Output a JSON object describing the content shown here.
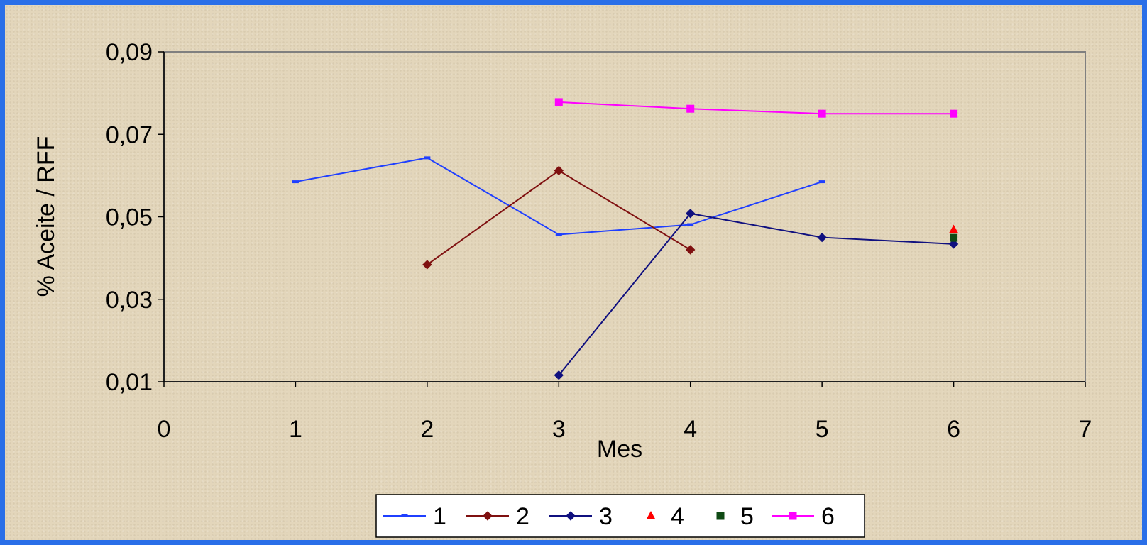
{
  "chart_data": {
    "type": "line",
    "title": "",
    "xlabel": "Mes",
    "ylabel": "% Aceite / RFF",
    "xlim": [
      0,
      7
    ],
    "ylim": [
      0.01,
      0.09
    ],
    "xticks": [
      0,
      1,
      2,
      3,
      4,
      5,
      6,
      7
    ],
    "xtick_labels": [
      "0",
      "1",
      "2",
      "3",
      "4",
      "5",
      "6",
      "7"
    ],
    "yticks": [
      0.01,
      0.03,
      0.05,
      0.07,
      0.09
    ],
    "ytick_labels": [
      "0,01",
      "0,03",
      "0,05",
      "0,07",
      "0,09"
    ],
    "grid": false,
    "legend_position": "bottom",
    "series": [
      {
        "name": "1",
        "color": "#1f3fff",
        "marker": "dash",
        "points": [
          [
            1,
            0.0585
          ],
          [
            2,
            0.0643
          ],
          [
            3,
            0.0457
          ],
          [
            4,
            0.0481
          ],
          [
            5,
            0.0585
          ]
        ]
      },
      {
        "name": "2",
        "color": "#7f1010",
        "marker": "diamond",
        "points": [
          [
            2,
            0.0384
          ],
          [
            3,
            0.0612
          ],
          [
            4,
            0.042
          ]
        ]
      },
      {
        "name": "3",
        "color": "#10107f",
        "marker": "diamond",
        "points": [
          [
            3,
            0.0116
          ],
          [
            4,
            0.0508
          ],
          [
            5,
            0.045
          ],
          [
            6,
            0.0434
          ]
        ]
      },
      {
        "name": "4",
        "color": "#ff0000",
        "marker": "triangle",
        "points": [
          [
            6,
            0.0469
          ]
        ]
      },
      {
        "name": "5",
        "color": "#0f4a14",
        "marker": "square",
        "points": [
          [
            6,
            0.0449
          ]
        ]
      },
      {
        "name": "6",
        "color": "#ff00ff",
        "marker": "square",
        "points": [
          [
            3,
            0.0778
          ],
          [
            4,
            0.0762
          ],
          [
            5,
            0.075
          ],
          [
            6,
            0.075
          ]
        ]
      }
    ]
  }
}
